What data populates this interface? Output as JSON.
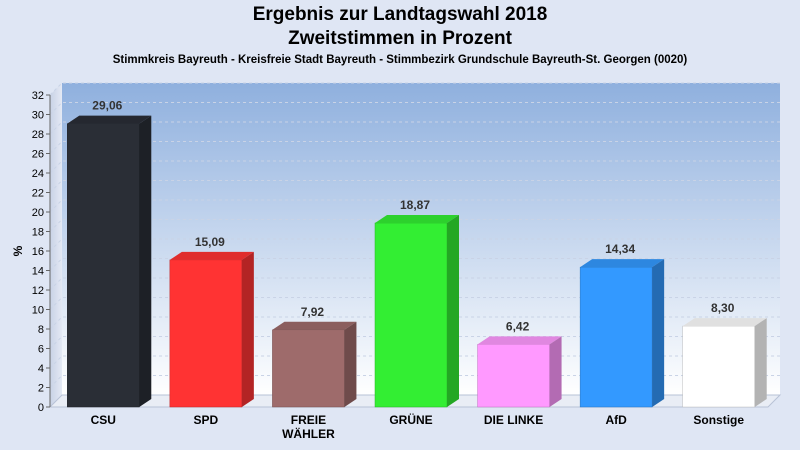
{
  "chart_data": {
    "type": "bar",
    "title": "Ergebnis zur Landtagswahl 2018",
    "title2": "Zweitstimmen in Prozent",
    "subtitle": "Stimmkreis Bayreuth - Kreisfreie Stadt Bayreuth - Stimmbezirk Grundschule Bayreuth-St. Georgen (0020)",
    "ylabel": "%",
    "ylim": [
      0,
      32
    ],
    "yticks": [
      0,
      2,
      4,
      6,
      8,
      10,
      12,
      14,
      16,
      18,
      20,
      22,
      24,
      26,
      28,
      30,
      32
    ],
    "grid": true,
    "categories": [
      [
        "CSU"
      ],
      [
        "SPD"
      ],
      [
        "FREIE",
        "WÄHLER"
      ],
      [
        "GRÜNE"
      ],
      [
        "DIE LINKE"
      ],
      [
        "AfD"
      ],
      [
        "Sonstige"
      ]
    ],
    "values": [
      29.06,
      15.09,
      7.92,
      18.87,
      6.42,
      14.34,
      8.3
    ],
    "value_labels": [
      "29,06",
      "15,09",
      "7,92",
      "18,87",
      "6,42",
      "14,34",
      "8,30"
    ],
    "colors": [
      "#2a2e36",
      "#ff3333",
      "#9e6b6b",
      "#33ee33",
      "#ff99ff",
      "#3399ff",
      "#ffffff"
    ]
  }
}
